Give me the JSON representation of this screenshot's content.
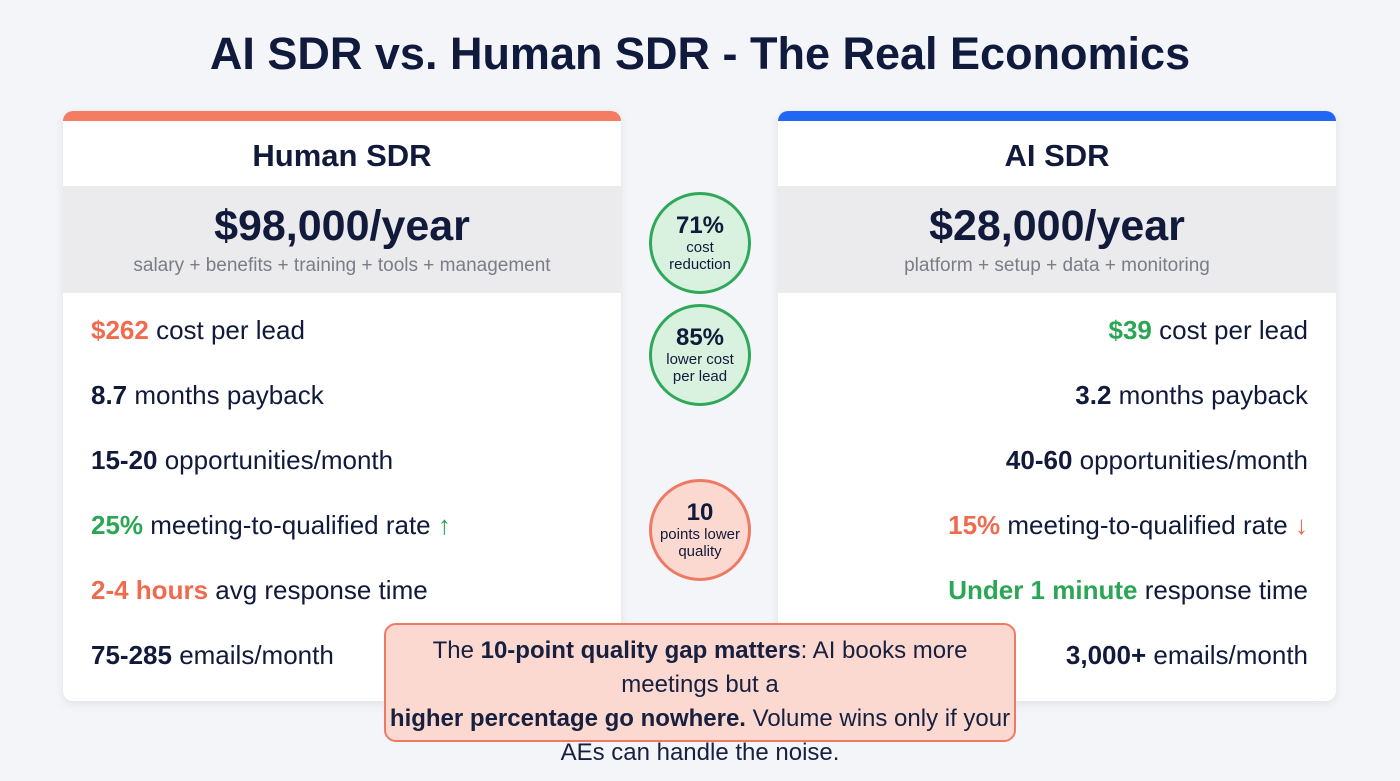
{
  "title": "AI SDR vs. Human SDR - The Real Economics",
  "colors": {
    "orange": "#f06a4f",
    "green": "#2aa655",
    "dark": "#111a3a",
    "human_accent": "#f47c62",
    "ai_accent": "#2166f5"
  },
  "human": {
    "heading": "Human SDR",
    "price": "$98,000/year",
    "sub": "salary + benefits + training + tools + management",
    "rows": [
      {
        "strong": "$262",
        "rest": " cost per lead",
        "arrow": ""
      },
      {
        "strong": "8.7",
        "rest": " months payback",
        "arrow": ""
      },
      {
        "strong": "15-20",
        "rest": " opportunities/month",
        "arrow": ""
      },
      {
        "strong": "25%",
        "rest": " meeting-to-qualified rate ",
        "arrow": "↑"
      },
      {
        "strong": "2-4 hours",
        "rest": " avg response time",
        "arrow": ""
      },
      {
        "strong": "75-285",
        "rest": " emails/month",
        "arrow": ""
      }
    ]
  },
  "ai": {
    "heading": "AI SDR",
    "price": "$28,000/year",
    "sub": "platform + setup + data + monitoring",
    "rows": [
      {
        "strong": "$39",
        "rest": " cost per lead",
        "arrow": ""
      },
      {
        "strong": "3.2",
        "rest": " months payback",
        "arrow": ""
      },
      {
        "strong": "40-60",
        "rest": " opportunities/month",
        "arrow": ""
      },
      {
        "strong": "15%",
        "rest": " meeting-to-qualified rate ",
        "arrow": "↓"
      },
      {
        "strong": "Under 1 minute",
        "rest": " response time",
        "arrow": ""
      },
      {
        "strong": "3,000+",
        "rest": " emails/month",
        "arrow": ""
      }
    ]
  },
  "badges": [
    {
      "big": "71%",
      "small": "cost reduction"
    },
    {
      "big": "85%",
      "small": "lower cost per lead"
    },
    {
      "big": "10",
      "small": "points lower quality"
    }
  ],
  "callout": {
    "t1": "The ",
    "b1": "10-point quality gap matters",
    "t2": ": AI books more meetings but a ",
    "b2": "higher percentage go nowhere.",
    "t3": " Volume wins only if your AEs can handle the noise."
  }
}
